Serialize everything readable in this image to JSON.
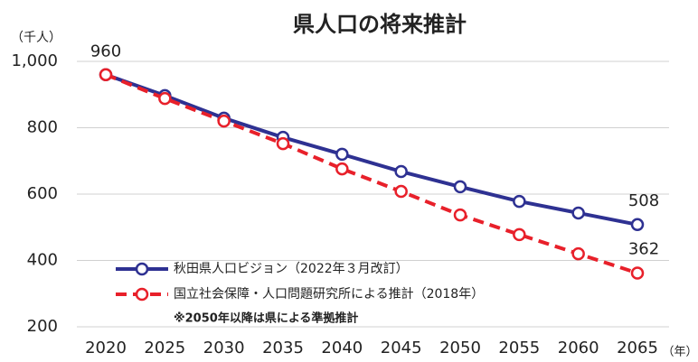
{
  "chart_data": {
    "type": "line",
    "title": "県人口の将来推計",
    "y_unit": "（千人）",
    "x_unit": "（年）",
    "x": [
      2020,
      2025,
      2030,
      2035,
      2040,
      2045,
      2050,
      2055,
      2060,
      2065
    ],
    "series": [
      {
        "name": "秋田県人口ビジョン（2022年３月改訂）",
        "color": "#2e3192",
        "dash": false,
        "values": [
          960,
          897,
          829,
          771,
          720,
          668,
          622,
          578,
          543,
          508
        ]
      },
      {
        "name": "国立社会保障・人口問題研究所による推計（2018年）",
        "color": "#e8202a",
        "dash": true,
        "values": [
          960,
          888,
          820,
          752,
          676,
          608,
          537,
          478,
          420,
          362
        ]
      }
    ],
    "note": "※2050年以降は県による準拠推計",
    "xlim": [
      2020,
      2065
    ],
    "ylim": [
      200,
      1000
    ],
    "yticks": [
      200,
      400,
      600,
      800,
      {
        "value": 1000,
        "label": "1,000"
      }
    ],
    "grid": true
  }
}
